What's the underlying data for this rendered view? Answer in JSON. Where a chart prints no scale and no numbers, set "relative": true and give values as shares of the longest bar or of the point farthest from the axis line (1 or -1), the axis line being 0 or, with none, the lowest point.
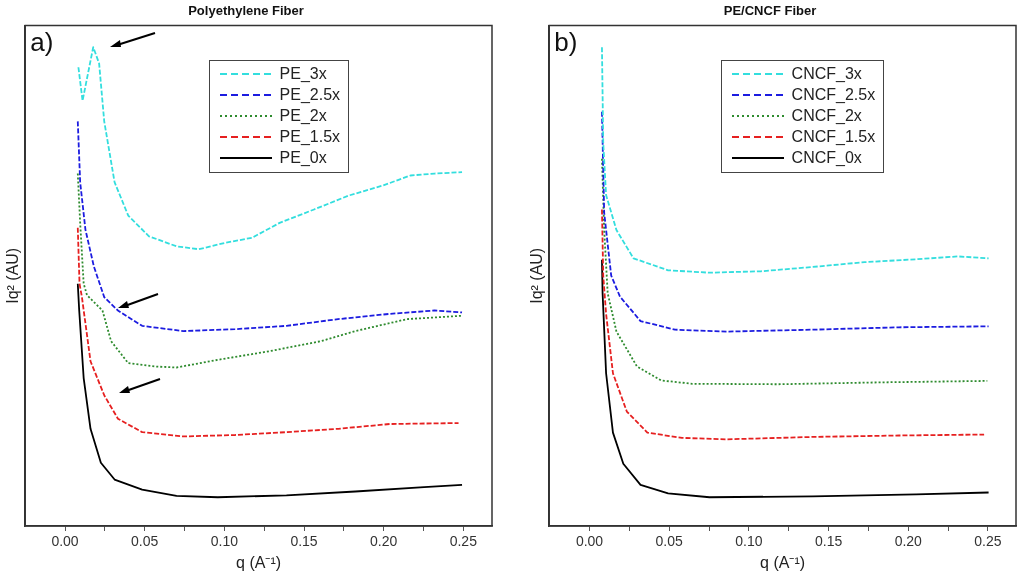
{
  "chart_data": [
    {
      "type": "line",
      "title": "Polyethylene Fiber",
      "xlabel": "q (A⁻¹)",
      "ylabel": "Iq² (AU)",
      "relative": true,
      "legend": "top",
      "grid": false,
      "annotations": [
        "a)"
      ],
      "xlim": [
        -0.025,
        0.268
      ],
      "xticks": [
        {
          "value": 0,
          "label": "0.00"
        },
        {
          "value": 0.025,
          "label": null
        },
        {
          "value": 0.05,
          "label": "0.05"
        },
        {
          "value": 0.075,
          "label": null
        },
        {
          "value": 0.1,
          "label": "0.10"
        },
        {
          "value": 0.125,
          "label": null
        },
        {
          "value": 0.15,
          "label": "0.15"
        },
        {
          "value": 0.175,
          "label": null
        },
        {
          "value": 0.2,
          "label": "0.20"
        },
        {
          "value": 0.225,
          "label": null
        },
        {
          "value": 0.25,
          "label": "0.25"
        }
      ],
      "tick_labels": "x",
      "series": [
        {
          "name": "PE_3x",
          "color": "#33dede",
          "line_style": "dashed",
          "x": [
            0.0084,
            0.011,
            0.0177,
            0.0214,
            0.0246,
            0.0311,
            0.0397,
            0.0527,
            0.07,
            0.084,
            0.1,
            0.1174,
            0.1347,
            0.1563,
            0.178,
            0.1995,
            0.2168,
            0.2319,
            0.2492
          ],
          "values": [
            0.958,
            0.888,
            1,
            0.966,
            0.845,
            0.718,
            0.648,
            0.605,
            0.584,
            0.578,
            0.591,
            0.602,
            0.633,
            0.661,
            0.69,
            0.711,
            0.732,
            0.736,
            0.739
          ]
        },
        {
          "name": "PE_2.5x",
          "color": "#1c1ce0",
          "line_style": "dashed",
          "x": [
            0.008,
            0.0095,
            0.0128,
            0.0181,
            0.0246,
            0.0332,
            0.0484,
            0.0743,
            0.1067,
            0.139,
            0.1714,
            0.2038,
            0.2319,
            0.2492
          ],
          "values": [
            0.845,
            0.718,
            0.619,
            0.542,
            0.478,
            0.45,
            0.418,
            0.407,
            0.411,
            0.418,
            0.432,
            0.443,
            0.45,
            0.446
          ]
        },
        {
          "name": "PE_2x",
          "color": "#2e8b2e",
          "line_style": "dotted",
          "x": [
            0.008,
            0.0095,
            0.0117,
            0.0138,
            0.0235,
            0.0289,
            0.0397,
            0.057,
            0.07,
            0.0959,
            0.1282,
            0.1606,
            0.1822,
            0.2146,
            0.2492
          ],
          "values": [
            0.736,
            0.633,
            0.506,
            0.482,
            0.45,
            0.386,
            0.34,
            0.333,
            0.331,
            0.347,
            0.365,
            0.386,
            0.407,
            0.432,
            0.439
          ]
        },
        {
          "name": "PE_1.5x",
          "color": "#e62020",
          "line_style": "dashed",
          "x": [
            0.008,
            0.0091,
            0.0106,
            0.016,
            0.0246,
            0.0332,
            0.0484,
            0.0743,
            0.1067,
            0.139,
            0.1714,
            0.2038,
            0.247
          ],
          "values": [
            0.623,
            0.506,
            0.478,
            0.344,
            0.273,
            0.224,
            0.196,
            0.187,
            0.19,
            0.196,
            0.203,
            0.213,
            0.215
          ]
        },
        {
          "name": "PE_0x",
          "color": "#000000",
          "line_style": "solid",
          "x": [
            0.008,
            0.0089,
            0.0117,
            0.016,
            0.0225,
            0.0311,
            0.0484,
            0.07,
            0.0959,
            0.139,
            0.1822,
            0.2254,
            0.2492
          ],
          "values": [
            0.506,
            0.45,
            0.309,
            0.203,
            0.132,
            0.097,
            0.076,
            0.063,
            0.06,
            0.064,
            0.072,
            0.081,
            0.086
          ]
        }
      ]
    },
    {
      "type": "line",
      "title": "PE/CNCF Fiber",
      "xlabel": "q (A⁻¹)",
      "ylabel": "Iq² (AU)",
      "relative": true,
      "legend": "top",
      "grid": false,
      "annotations": [
        "b)"
      ],
      "xlim": [
        -0.0253,
        0.2676
      ],
      "xticks": [
        {
          "value": 0,
          "label": "0.00"
        },
        {
          "value": 0.025,
          "label": null
        },
        {
          "value": 0.05,
          "label": "0.05"
        },
        {
          "value": 0.075,
          "label": null
        },
        {
          "value": 0.1,
          "label": "0.10"
        },
        {
          "value": 0.125,
          "label": null
        },
        {
          "value": 0.15,
          "label": "0.15"
        },
        {
          "value": 0.175,
          "label": null
        },
        {
          "value": 0.2,
          "label": "0.20"
        },
        {
          "value": 0.225,
          "label": null
        },
        {
          "value": 0.25,
          "label": "0.25"
        }
      ],
      "tick_labels": "x",
      "series": [
        {
          "name": "CNCF_3x",
          "color": "#33dede",
          "line_style": "dashed",
          "x": [
            0.0078,
            0.0086,
            0.0104,
            0.0169,
            0.0276,
            0.0493,
            0.0753,
            0.1077,
            0.1401,
            0.1726,
            0.205,
            0.231,
            0.2504
          ],
          "values": [
            1,
            0.8,
            0.691,
            0.618,
            0.559,
            0.534,
            0.529,
            0.532,
            0.541,
            0.551,
            0.557,
            0.563,
            0.559
          ]
        },
        {
          "name": "CNCF_2.5x",
          "color": "#1c1ce0",
          "line_style": "dashed",
          "x": [
            0.0078,
            0.0092,
            0.0136,
            0.0191,
            0.032,
            0.0536,
            0.0861,
            0.1401,
            0.1942,
            0.2504
          ],
          "values": [
            0.865,
            0.654,
            0.523,
            0.479,
            0.428,
            0.41,
            0.406,
            0.41,
            0.415,
            0.417
          ]
        },
        {
          "name": "CNCF_2x",
          "color": "#2e8b2e",
          "line_style": "dotted",
          "x": [
            0.0078,
            0.0092,
            0.0114,
            0.0169,
            0.0298,
            0.045,
            0.0645,
            0.1185,
            0.1834,
            0.2496
          ],
          "values": [
            0.767,
            0.618,
            0.486,
            0.406,
            0.333,
            0.304,
            0.297,
            0.296,
            0.3,
            0.303
          ]
        },
        {
          "name": "CNCF_1.5x",
          "color": "#e62020",
          "line_style": "dashed",
          "x": [
            0.0078,
            0.0086,
            0.0104,
            0.0147,
            0.0234,
            0.0363,
            0.058,
            0.0861,
            0.1401,
            0.1942,
            0.2476
          ],
          "values": [
            0.661,
            0.523,
            0.443,
            0.319,
            0.239,
            0.195,
            0.184,
            0.181,
            0.186,
            0.189,
            0.191
          ]
        },
        {
          "name": "CNCF_0x",
          "color": "#000000",
          "line_style": "solid",
          "x": [
            0.0078,
            0.0082,
            0.0104,
            0.0147,
            0.0212,
            0.032,
            0.0493,
            0.0753,
            0.1401,
            0.205,
            0.2504
          ],
          "values": [
            0.556,
            0.486,
            0.319,
            0.195,
            0.13,
            0.086,
            0.068,
            0.06,
            0.062,
            0.066,
            0.07
          ]
        }
      ]
    }
  ]
}
